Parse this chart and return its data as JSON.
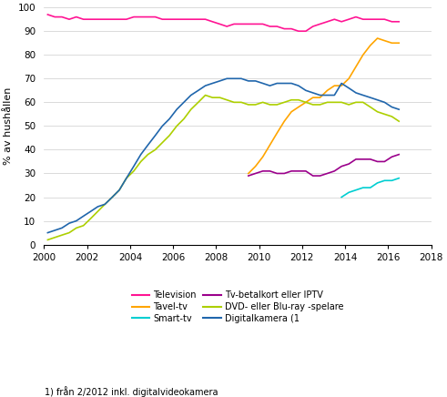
{
  "ylabel": "% av hushållen",
  "xlim": [
    2000,
    2018
  ],
  "ylim": [
    0,
    100
  ],
  "xticks": [
    2000,
    2002,
    2004,
    2006,
    2008,
    2010,
    2012,
    2014,
    2016,
    2018
  ],
  "yticks": [
    0,
    10,
    20,
    30,
    40,
    50,
    60,
    70,
    80,
    90,
    100
  ],
  "footnote": "1) från 2/2012 inkl. digitalvideokamera",
  "legend_labels": [
    "Television",
    "Tavel-tv",
    "Smart-tv",
    "Tv-betalkort eller IPTV",
    "DVD- eller Blu-ray -spelare",
    "Digitalkamera (1"
  ],
  "colors": {
    "Television": "#FF1493",
    "Tavel-tv": "#FFA500",
    "Smart-tv": "#00CED1",
    "Tv-betalkort": "#9B008B",
    "DVD": "#ADCF00",
    "Digitalkamera": "#2066AC"
  },
  "Television_x": [
    2000.17,
    2000.5,
    2000.83,
    2001.17,
    2001.5,
    2001.83,
    2002.17,
    2002.5,
    2002.83,
    2003.17,
    2003.5,
    2003.83,
    2004.17,
    2004.5,
    2004.83,
    2005.17,
    2005.5,
    2005.83,
    2006.17,
    2006.5,
    2006.83,
    2007.17,
    2007.5,
    2007.83,
    2008.17,
    2008.5,
    2008.83,
    2009.17,
    2009.5,
    2009.83,
    2010.17,
    2010.5,
    2010.83,
    2011.17,
    2011.5,
    2011.83,
    2012.17,
    2012.5,
    2012.83,
    2013.17,
    2013.5,
    2013.83,
    2014.17,
    2014.5,
    2014.83,
    2015.17,
    2015.5,
    2015.83,
    2016.17,
    2016.5
  ],
  "Television_y": [
    97,
    96,
    96,
    95,
    96,
    95,
    95,
    95,
    95,
    95,
    95,
    95,
    96,
    96,
    96,
    96,
    95,
    95,
    95,
    95,
    95,
    95,
    95,
    94,
    93,
    92,
    93,
    93,
    93,
    93,
    93,
    92,
    92,
    91,
    91,
    90,
    90,
    92,
    93,
    94,
    95,
    94,
    95,
    96,
    95,
    95,
    95,
    95,
    94,
    94
  ],
  "Tavel_x": [
    2009.5,
    2009.83,
    2010.17,
    2010.5,
    2010.83,
    2011.17,
    2011.5,
    2011.83,
    2012.17,
    2012.5,
    2012.83,
    2013.17,
    2013.5,
    2013.83,
    2014.17,
    2014.5,
    2014.83,
    2015.17,
    2015.5,
    2015.83,
    2016.17,
    2016.5
  ],
  "Tavel_y": [
    30,
    33,
    37,
    42,
    47,
    52,
    56,
    58,
    60,
    62,
    62,
    65,
    67,
    67,
    70,
    75,
    80,
    84,
    87,
    86,
    85,
    85
  ],
  "Smart_x": [
    2013.83,
    2014.17,
    2014.5,
    2014.83,
    2015.17,
    2015.5,
    2015.83,
    2016.17,
    2016.5
  ],
  "Smart_y": [
    20,
    22,
    23,
    24,
    24,
    26,
    27,
    27,
    28
  ],
  "Betalkort_x": [
    2009.5,
    2009.83,
    2010.17,
    2010.5,
    2010.83,
    2011.17,
    2011.5,
    2011.83,
    2012.17,
    2012.5,
    2012.83,
    2013.17,
    2013.5,
    2013.83,
    2014.17,
    2014.5,
    2014.83,
    2015.17,
    2015.5,
    2015.83,
    2016.17,
    2016.5
  ],
  "Betalkort_y": [
    29,
    30,
    31,
    31,
    30,
    30,
    31,
    31,
    31,
    29,
    29,
    30,
    31,
    33,
    34,
    36,
    36,
    36,
    35,
    35,
    37,
    38
  ],
  "DVD_x": [
    2000.17,
    2000.5,
    2000.83,
    2001.17,
    2001.5,
    2001.83,
    2002.17,
    2002.5,
    2002.83,
    2003.17,
    2003.5,
    2003.83,
    2004.17,
    2004.5,
    2004.83,
    2005.17,
    2005.5,
    2005.83,
    2006.17,
    2006.5,
    2006.83,
    2007.17,
    2007.5,
    2007.83,
    2008.17,
    2008.5,
    2008.83,
    2009.17,
    2009.5,
    2009.83,
    2010.17,
    2010.5,
    2010.83,
    2011.17,
    2011.5,
    2011.83,
    2012.17,
    2012.5,
    2012.83,
    2013.17,
    2013.5,
    2013.83,
    2014.17,
    2014.5,
    2014.83,
    2015.17,
    2015.5,
    2015.83,
    2016.17,
    2016.5
  ],
  "DVD_y": [
    2,
    3,
    4,
    5,
    7,
    8,
    11,
    14,
    17,
    20,
    23,
    28,
    31,
    35,
    38,
    40,
    43,
    46,
    50,
    53,
    57,
    60,
    63,
    62,
    62,
    61,
    60,
    60,
    59,
    59,
    60,
    59,
    59,
    60,
    61,
    61,
    60,
    59,
    59,
    60,
    60,
    60,
    59,
    60,
    60,
    58,
    56,
    55,
    54,
    52
  ],
  "Digi_x": [
    2000.17,
    2000.5,
    2000.83,
    2001.17,
    2001.5,
    2001.83,
    2002.17,
    2002.5,
    2002.83,
    2003.17,
    2003.5,
    2003.83,
    2004.17,
    2004.5,
    2004.83,
    2005.17,
    2005.5,
    2005.83,
    2006.17,
    2006.5,
    2006.83,
    2007.17,
    2007.5,
    2007.83,
    2008.17,
    2008.5,
    2008.83,
    2009.17,
    2009.5,
    2009.83,
    2010.17,
    2010.5,
    2010.83,
    2011.17,
    2011.5,
    2011.83,
    2012.17,
    2012.5,
    2012.83,
    2013.17,
    2013.5,
    2013.83,
    2014.17,
    2014.5,
    2014.83,
    2015.17,
    2015.5,
    2015.83,
    2016.17,
    2016.5
  ],
  "Digi_y": [
    5,
    6,
    7,
    9,
    10,
    12,
    14,
    16,
    17,
    20,
    23,
    28,
    33,
    38,
    42,
    46,
    50,
    53,
    57,
    60,
    63,
    65,
    67,
    68,
    69,
    70,
    70,
    70,
    69,
    69,
    68,
    67,
    68,
    68,
    68,
    67,
    65,
    64,
    63,
    63,
    63,
    68,
    66,
    64,
    63,
    62,
    61,
    60,
    58,
    57
  ]
}
